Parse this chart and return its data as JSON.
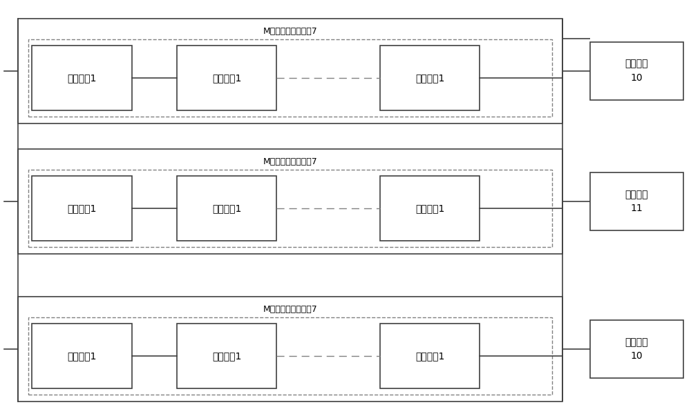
{
  "bg_color": "#ffffff",
  "line_color": "#404040",
  "dashed_color": "#808080",
  "row_label": "M个组件组光伏小组7",
  "module_label": "光伏组件1",
  "right_boxes": [
    {
      "label": "终端节点\n10"
    },
    {
      "label": "路由节点\n11"
    },
    {
      "label": "终端节点\n10"
    }
  ],
  "font_size_label": 9,
  "font_size_module": 10,
  "font_size_right": 10
}
